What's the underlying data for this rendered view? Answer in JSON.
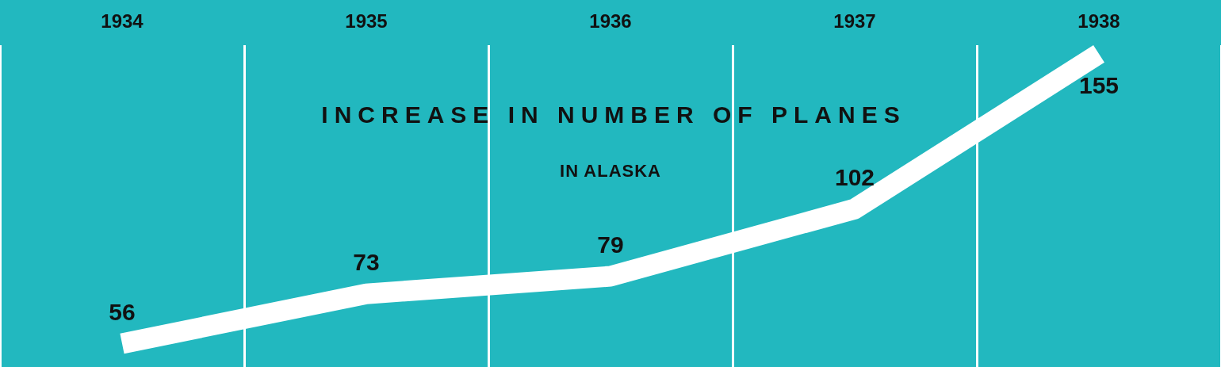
{
  "chart_data": {
    "type": "line",
    "title": "INCREASE IN NUMBER OF PLANES",
    "subtitle": "IN ALASKA",
    "categories": [
      "1934",
      "1935",
      "1936",
      "1937",
      "1938"
    ],
    "series": [
      {
        "color": "#ffffff",
        "values": [
          56,
          73,
          79,
          102,
          155
        ]
      }
    ],
    "ylim": [
      48,
      158
    ],
    "data_labels": true,
    "grid": "x",
    "legend": false,
    "tick_labels": "x",
    "marker": "none",
    "line_style": "solid"
  }
}
